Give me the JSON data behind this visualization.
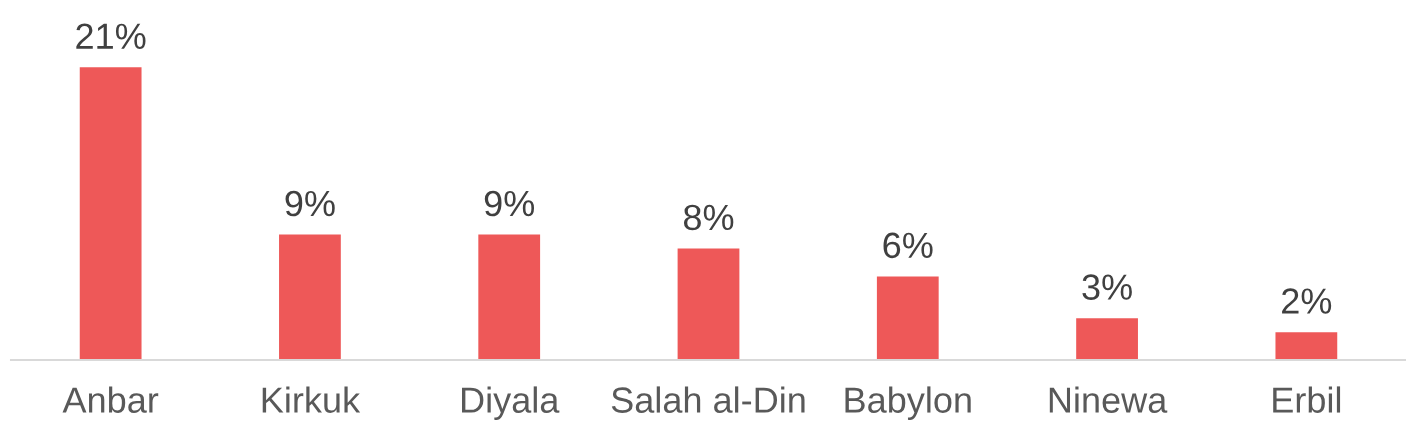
{
  "chart_data": {
    "type": "bar",
    "categories": [
      "Anbar",
      "Kirkuk",
      "Diyala",
      "Salah al-Din",
      "Babylon",
      "Ninewa",
      "Erbil"
    ],
    "values": [
      21,
      9,
      9,
      8,
      6,
      3,
      2
    ],
    "value_labels": [
      "21%",
      "9%",
      "9%",
      "8%",
      "6%",
      "3%",
      "2%"
    ],
    "color": "#ee5858",
    "grid": false,
    "legend": false
  }
}
